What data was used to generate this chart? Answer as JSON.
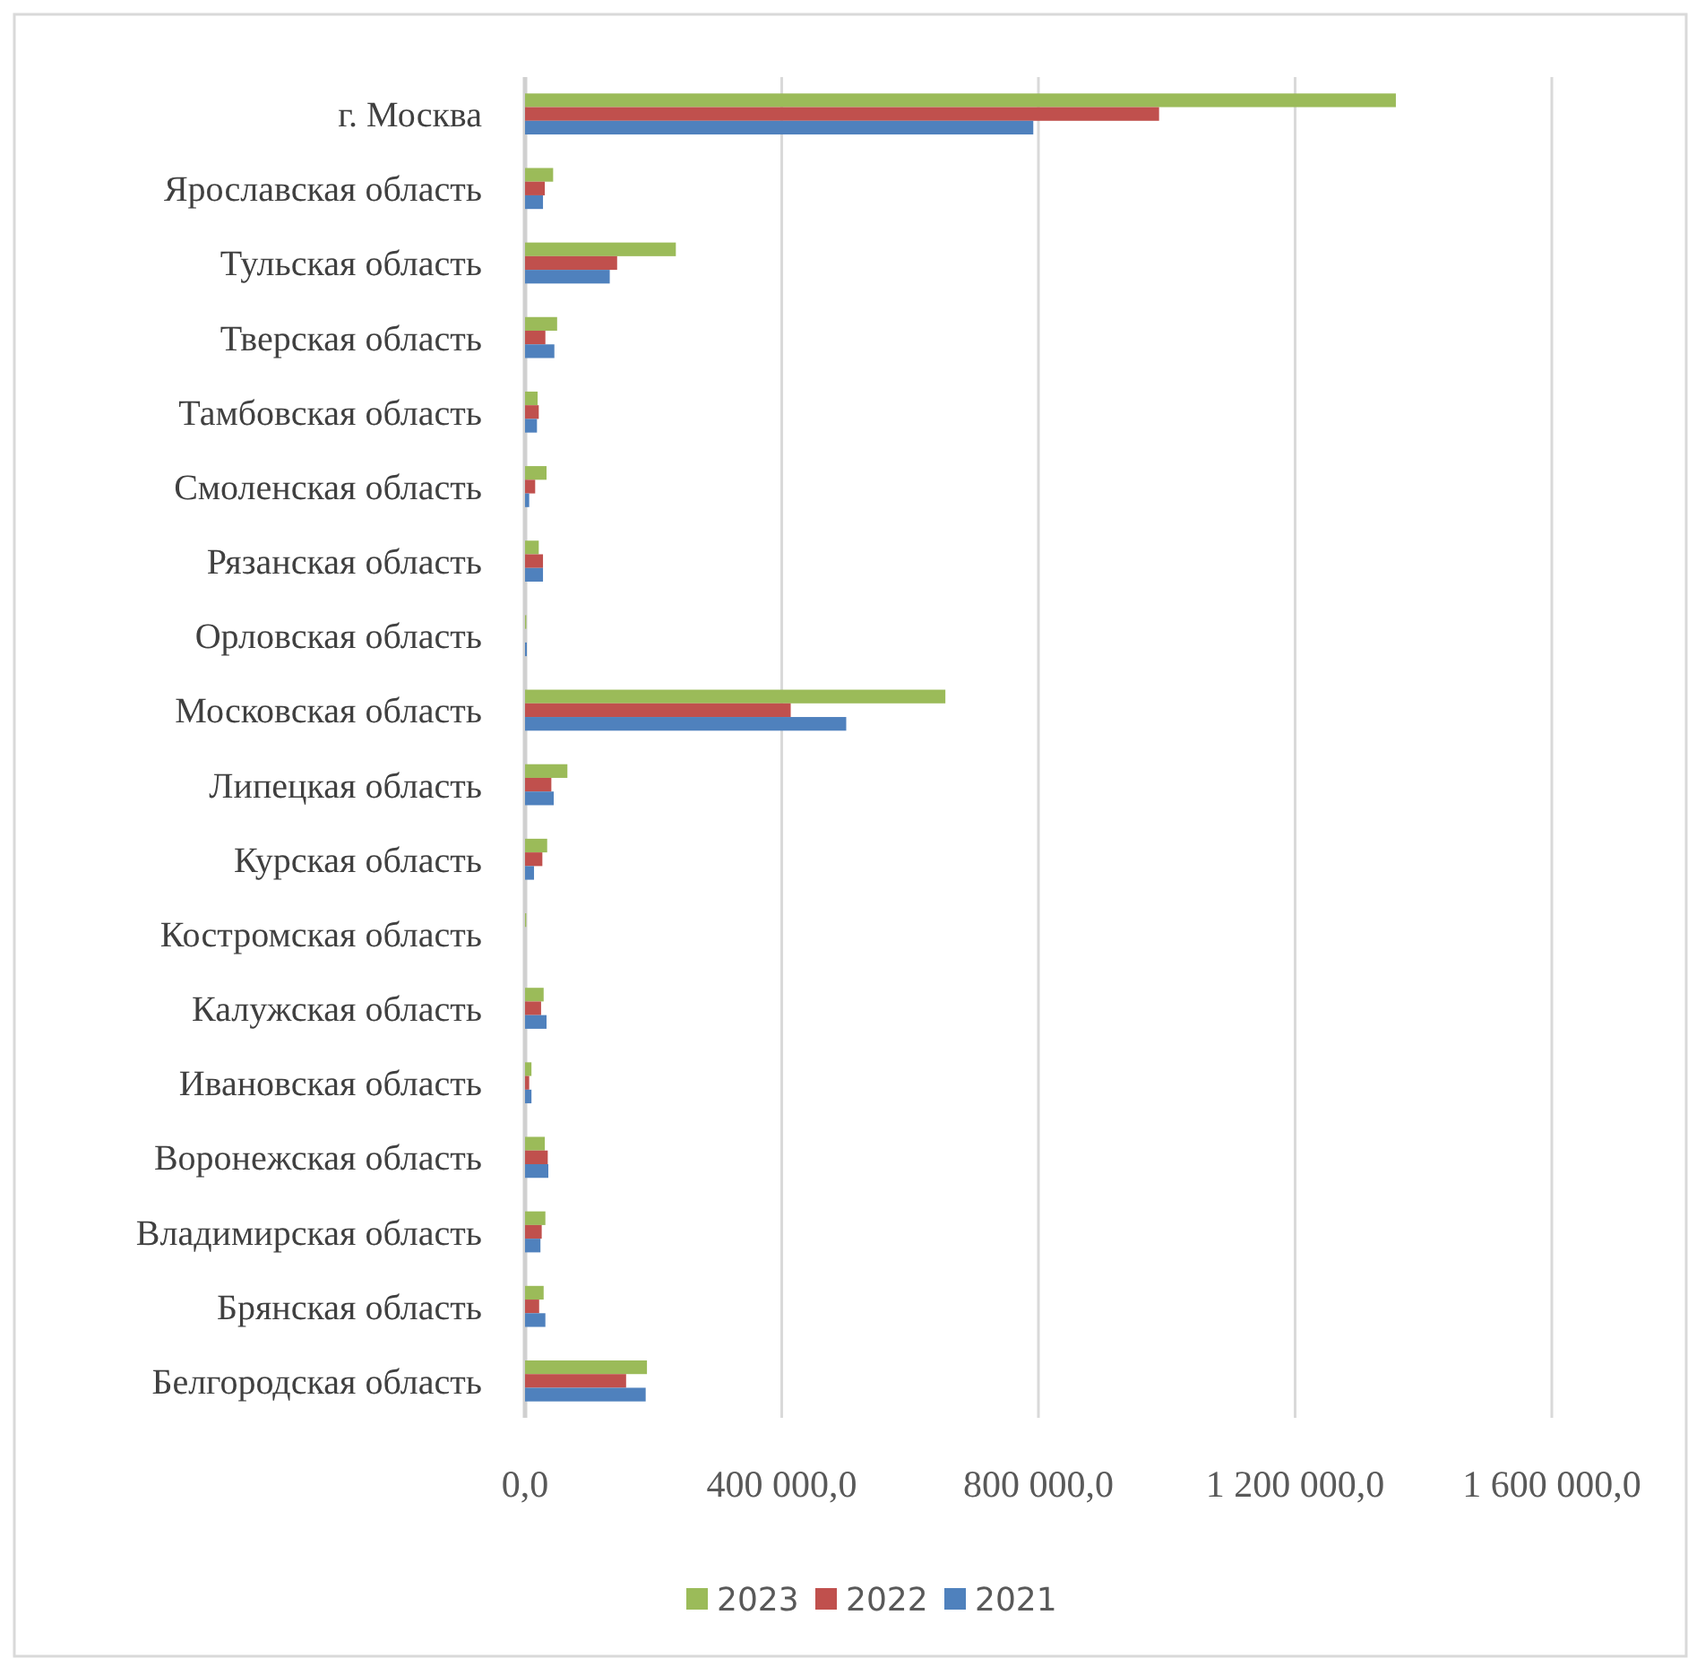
{
  "chart_data": {
    "type": "bar",
    "orientation": "horizontal",
    "categories": [
      "г. Москва",
      "Ярославская область",
      "Тульская область",
      "Тверская область",
      "Тамбовская область",
      "Смоленская область",
      "Рязанская область",
      "Орловская область",
      "Московская область",
      "Липецкая область",
      "Курская область",
      "Костромская область",
      "Калужская область",
      "Ивановская область",
      "Воронежская область",
      "Владимирская область",
      "Брянская область",
      "Белгородская область"
    ],
    "series": [
      {
        "name": "2023",
        "color": "#9bbb59",
        "values": [
          1357000,
          43800,
          235000,
          50000,
          19600,
          33500,
          21400,
          2000,
          655000,
          66000,
          34500,
          1900,
          29000,
          10000,
          30800,
          31700,
          29000,
          190000
        ]
      },
      {
        "name": "2022",
        "color": "#c0504d",
        "values": [
          988000,
          30800,
          143500,
          31700,
          21400,
          15800,
          28000,
          0,
          414000,
          41000,
          27000,
          0,
          25000,
          6500,
          35400,
          26000,
          22000,
          157500
        ]
      },
      {
        "name": "2021",
        "color": "#4f81bd",
        "values": [
          792000,
          28000,
          132000,
          45700,
          18600,
          6500,
          28000,
          2800,
          500500,
          44700,
          14000,
          0,
          33500,
          10000,
          36300,
          24000,
          31700,
          188000
        ]
      }
    ],
    "xlim": [
      0,
      1600000
    ],
    "xticks": [
      {
        "value": 0,
        "label": "0,0"
      },
      {
        "value": 400000,
        "label": "400 000,0"
      },
      {
        "value": 800000,
        "label": "800 000,0"
      },
      {
        "value": 1200000,
        "label": "1 200 000,0"
      },
      {
        "value": 1600000,
        "label": "1 600 000,0"
      }
    ],
    "grid": "x",
    "legend": "bottom"
  }
}
